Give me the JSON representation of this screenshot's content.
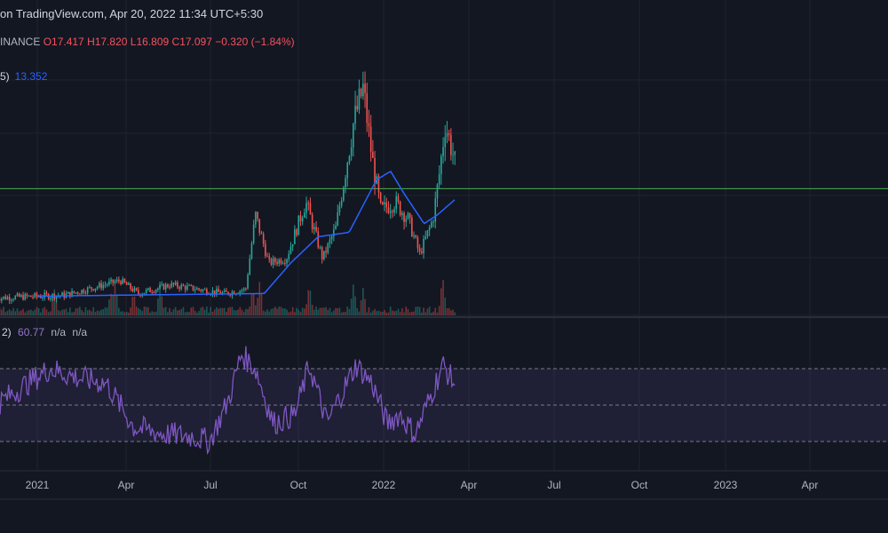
{
  "header": {
    "text": "on TradingView.com, Apr 20, 2022 11:34 UTC+5:30"
  },
  "ohlc": {
    "symbol_fragment": "INANCE",
    "open": "O17.417",
    "high": "H17.820",
    "low": "L16.809",
    "close": "C17.097",
    "change": "−0.320 (−1.84%)"
  },
  "ma_legend": {
    "prefix": "5)",
    "value": "13.352"
  },
  "rsi_legend": {
    "prefix": "2)",
    "value": "60.77",
    "na1": "n/a",
    "na2": "n/a"
  },
  "colors": {
    "background": "#131722",
    "up": "#26a69a",
    "down": "#ef5350",
    "ma": "#2962ff",
    "rsi": "#7e57c2",
    "rsi_band": "#7e57c2",
    "hline": "#4caf50",
    "grid": "#1f2330"
  },
  "chart_data": {
    "type": "candlestick",
    "title": "",
    "x_ticks": [
      "2021",
      "Apr",
      "Jul",
      "Oct",
      "2022",
      "Apr",
      "Jul",
      "Oct",
      "2023",
      "Apr"
    ],
    "price_ylim": [
      0,
      30
    ],
    "horizontal_line": 14.5,
    "price_segments": [
      {
        "date": "2020-11-15",
        "price": 2.0
      },
      {
        "date": "2021-02-01",
        "price": 2.3
      },
      {
        "date": "2021-04-05",
        "price": 4.0
      },
      {
        "date": "2021-04-25",
        "price": 2.5
      },
      {
        "date": "2021-06-01",
        "price": 3.5
      },
      {
        "date": "2021-08-01",
        "price": 2.5
      },
      {
        "date": "2021-08-25",
        "price": 3.0
      },
      {
        "date": "2021-09-05",
        "price": 11.5
      },
      {
        "date": "2021-09-20",
        "price": 6.0
      },
      {
        "date": "2021-10-10",
        "price": 6.5
      },
      {
        "date": "2021-11-01",
        "price": 13.0
      },
      {
        "date": "2021-11-20",
        "price": 6.5
      },
      {
        "date": "2021-12-05",
        "price": 10.0
      },
      {
        "date": "2021-12-15",
        "price": 16.0
      },
      {
        "date": "2021-12-25",
        "price": 22.0
      },
      {
        "date": "2022-01-05",
        "price": 26.0
      },
      {
        "date": "2022-01-15",
        "price": 18.0
      },
      {
        "date": "2022-01-25",
        "price": 12.0
      },
      {
        "date": "2022-02-10",
        "price": 13.0
      },
      {
        "date": "2022-02-25",
        "price": 11.0
      },
      {
        "date": "2022-03-10",
        "price": 7.0
      },
      {
        "date": "2022-03-25",
        "price": 11.0
      },
      {
        "date": "2022-04-01",
        "price": 16.0
      },
      {
        "date": "2022-04-08",
        "price": 22.0
      },
      {
        "date": "2022-04-20",
        "price": 17.1
      }
    ],
    "moving_average": [
      {
        "date": "2021-01-01",
        "price": 2.2
      },
      {
        "date": "2021-09-15",
        "price": 2.5
      },
      {
        "date": "2021-10-15",
        "price": 6.0
      },
      {
        "date": "2021-11-15",
        "price": 9.0
      },
      {
        "date": "2021-12-20",
        "price": 9.5
      },
      {
        "date": "2022-01-20",
        "price": 15.5
      },
      {
        "date": "2022-02-05",
        "price": 16.5
      },
      {
        "date": "2022-02-20",
        "price": 14.0
      },
      {
        "date": "2022-03-15",
        "price": 10.5
      },
      {
        "date": "2022-03-30",
        "price": 11.5
      },
      {
        "date": "2022-04-20",
        "price": 13.35
      }
    ],
    "rsi_ylim": [
      0,
      100
    ],
    "rsi_levels": [
      70,
      50,
      30
    ],
    "rsi_segments": [
      {
        "date": "2020-11-15",
        "rsi": 50
      },
      {
        "date": "2020-12-15",
        "rsi": 60
      },
      {
        "date": "2021-01-15",
        "rsi": 70
      },
      {
        "date": "2021-02-15",
        "rsi": 65
      },
      {
        "date": "2021-03-20",
        "rsi": 62
      },
      {
        "date": "2021-04-20",
        "rsi": 38
      },
      {
        "date": "2021-05-25",
        "rsi": 34
      },
      {
        "date": "2021-06-25",
        "rsi": 33
      },
      {
        "date": "2021-07-15",
        "rsi": 30
      },
      {
        "date": "2021-08-05",
        "rsi": 52
      },
      {
        "date": "2021-08-20",
        "rsi": 78
      },
      {
        "date": "2021-09-05",
        "rsi": 70
      },
      {
        "date": "2021-09-25",
        "rsi": 40
      },
      {
        "date": "2021-10-20",
        "rsi": 45
      },
      {
        "date": "2021-11-05",
        "rsi": 72
      },
      {
        "date": "2021-11-25",
        "rsi": 40
      },
      {
        "date": "2021-12-10",
        "rsi": 55
      },
      {
        "date": "2021-12-28",
        "rsi": 72
      },
      {
        "date": "2022-01-15",
        "rsi": 62
      },
      {
        "date": "2022-02-01",
        "rsi": 40
      },
      {
        "date": "2022-02-15",
        "rsi": 45
      },
      {
        "date": "2022-03-05",
        "rsi": 34
      },
      {
        "date": "2022-03-20",
        "rsi": 52
      },
      {
        "date": "2022-04-05",
        "rsi": 72
      },
      {
        "date": "2022-04-20",
        "rsi": 60.77
      }
    ],
    "volume_spikes": [
      {
        "date": "2021-01-20",
        "level": 0.7
      },
      {
        "date": "2021-03-25",
        "level": 0.6
      },
      {
        "date": "2021-03-30",
        "level": 0.9
      },
      {
        "date": "2021-04-20",
        "level": 0.6
      },
      {
        "date": "2021-05-20",
        "level": 0.8
      },
      {
        "date": "2021-09-02",
        "level": 0.7
      },
      {
        "date": "2021-09-10",
        "level": 0.9
      },
      {
        "date": "2021-11-05",
        "level": 0.8
      },
      {
        "date": "2021-12-25",
        "level": 0.8
      },
      {
        "date": "2022-01-05",
        "level": 0.7
      },
      {
        "date": "2022-04-05",
        "level": 1.0
      }
    ]
  }
}
